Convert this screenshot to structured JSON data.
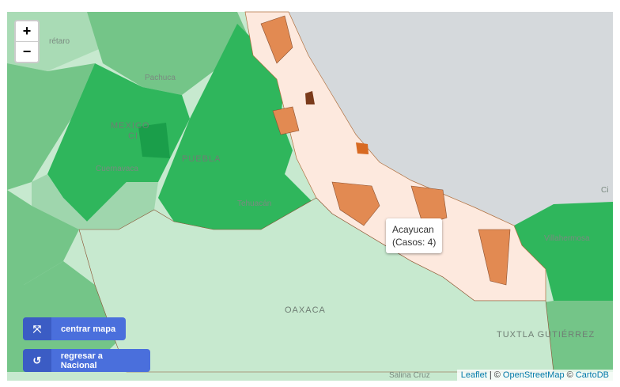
{
  "map": {
    "zoom_controls": {
      "zoom_in": "+",
      "zoom_out": "−"
    },
    "labels": [
      "rétaro",
      "Pachuca",
      "MEXICO",
      "CI",
      "Cuernavaca",
      "PUEBLA",
      "Tehuacán",
      "OAXACA",
      "Villahermosa",
      "TUXTLA GUTIÉRREZ",
      "Salina Cruz",
      "Ci"
    ],
    "tooltip": {
      "title": "Acayucan",
      "text": "(Casos: 4)"
    },
    "buttons": [
      "centrar mapa",
      "regresar a Nacional"
    ],
    "attribution": [
      "Leaflet",
      "|",
      "©",
      "OpenStreetMap",
      "©",
      "CartoDB"
    ]
  }
}
